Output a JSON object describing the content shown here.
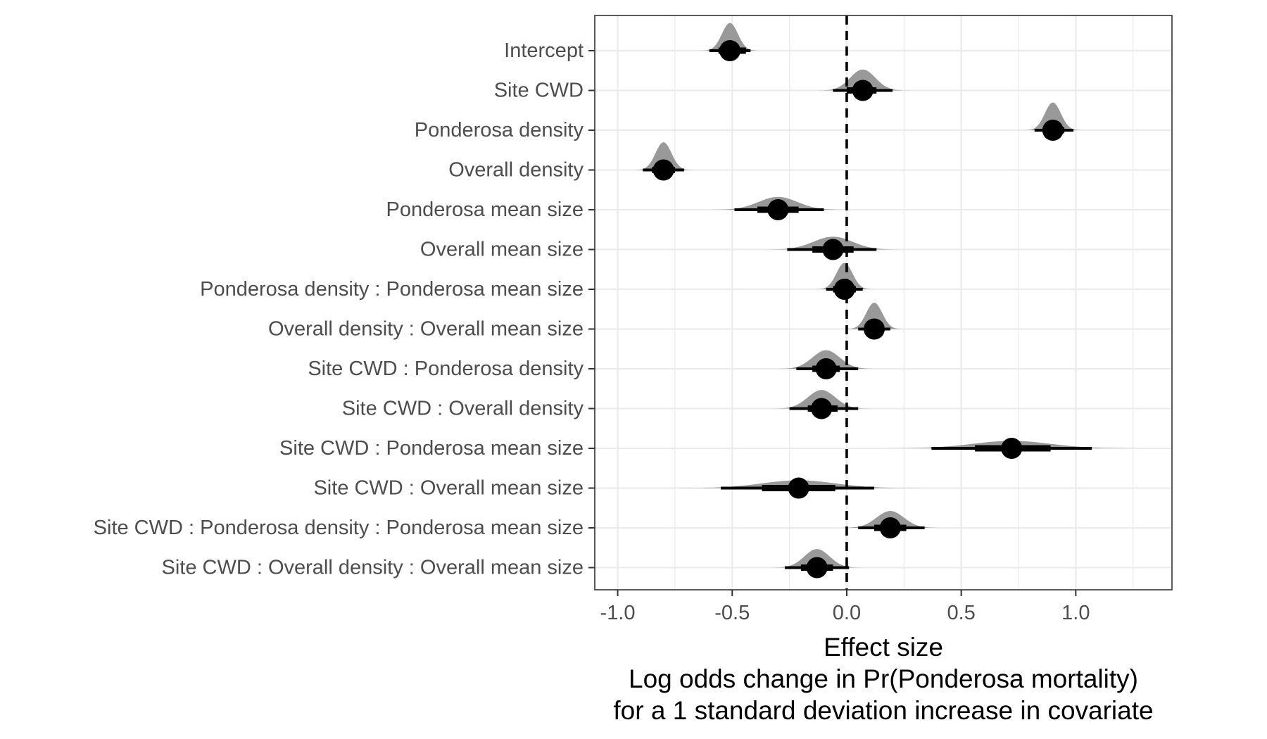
{
  "chart_data": {
    "type": "interval",
    "xlabel_lines": [
      "Effect size",
      "Log odds change in Pr(Ponderosa mortality)",
      "for a 1 standard deviation increase in covariate"
    ],
    "xlim": [
      -1.1,
      1.42
    ],
    "x_ticks": [
      -1.0,
      -0.5,
      0.0,
      0.5,
      1.0
    ],
    "x_tick_labels": [
      "-1.0",
      "-0.5",
      "0.0",
      "0.5",
      "1.0"
    ],
    "reference_line": 0,
    "grid": true,
    "colors": {
      "density": "#999999",
      "point": "#000000",
      "grid": "#ebebeb",
      "panel_border": "#333333",
      "reference_line": "#000000"
    },
    "rows": [
      {
        "label": "Intercept",
        "median": -0.51,
        "inner": [
          -0.56,
          -0.44
        ],
        "outer": [
          -0.6,
          -0.42
        ],
        "density_sd": 0.035,
        "density_height": 0.82
      },
      {
        "label": "Site CWD",
        "median": 0.07,
        "inner": [
          0.0,
          0.13
        ],
        "outer": [
          -0.06,
          0.2
        ],
        "density_sd": 0.055,
        "density_height": 0.62
      },
      {
        "label": "Ponderosa density",
        "median": 0.9,
        "inner": [
          0.86,
          0.95
        ],
        "outer": [
          0.82,
          0.99
        ],
        "density_sd": 0.035,
        "density_height": 0.82
      },
      {
        "label": "Overall density",
        "median": -0.8,
        "inner": [
          -0.85,
          -0.75
        ],
        "outer": [
          -0.89,
          -0.71
        ],
        "density_sd": 0.035,
        "density_height": 0.82
      },
      {
        "label": "Ponderosa mean size",
        "median": -0.3,
        "inner": [
          -0.39,
          -0.21
        ],
        "outer": [
          -0.49,
          -0.1
        ],
        "density_sd": 0.085,
        "density_height": 0.38
      },
      {
        "label": "Overall mean size",
        "median": -0.06,
        "inner": [
          -0.15,
          0.03
        ],
        "outer": [
          -0.26,
          0.13
        ],
        "density_sd": 0.085,
        "density_height": 0.38
      },
      {
        "label": "Ponderosa density : Ponderosa mean size",
        "median": -0.01,
        "inner": [
          -0.06,
          0.04
        ],
        "outer": [
          -0.09,
          0.07
        ],
        "density_sd": 0.035,
        "density_height": 0.78
      },
      {
        "label": "Overall density : Overall mean size",
        "median": 0.12,
        "inner": [
          0.08,
          0.16
        ],
        "outer": [
          0.05,
          0.19
        ],
        "density_sd": 0.035,
        "density_height": 0.78
      },
      {
        "label": "Site CWD : Ponderosa density",
        "median": -0.09,
        "inner": [
          -0.15,
          -0.03
        ],
        "outer": [
          -0.22,
          0.05
        ],
        "density_sd": 0.06,
        "density_height": 0.55
      },
      {
        "label": "Site CWD : Overall density",
        "median": -0.11,
        "inner": [
          -0.17,
          -0.04
        ],
        "outer": [
          -0.25,
          0.05
        ],
        "density_sd": 0.06,
        "density_height": 0.55
      },
      {
        "label": "Site CWD : Ponderosa mean size",
        "median": 0.72,
        "inner": [
          0.56,
          0.89
        ],
        "outer": [
          0.37,
          1.07
        ],
        "density_sd": 0.17,
        "density_height": 0.22
      },
      {
        "label": "Site CWD : Overall mean size",
        "median": -0.21,
        "inner": [
          -0.37,
          -0.05
        ],
        "outer": [
          -0.55,
          0.12
        ],
        "density_sd": 0.16,
        "density_height": 0.23
      },
      {
        "label": "Site CWD : Ponderosa density : Ponderosa mean size",
        "median": 0.19,
        "inner": [
          0.12,
          0.26
        ],
        "outer": [
          0.05,
          0.34
        ],
        "density_sd": 0.06,
        "density_height": 0.5
      },
      {
        "label": "Site CWD : Overall density : Overall mean size",
        "median": -0.13,
        "inner": [
          -0.2,
          -0.06
        ],
        "outer": [
          -0.27,
          0.01
        ],
        "density_sd": 0.055,
        "density_height": 0.55
      }
    ]
  }
}
